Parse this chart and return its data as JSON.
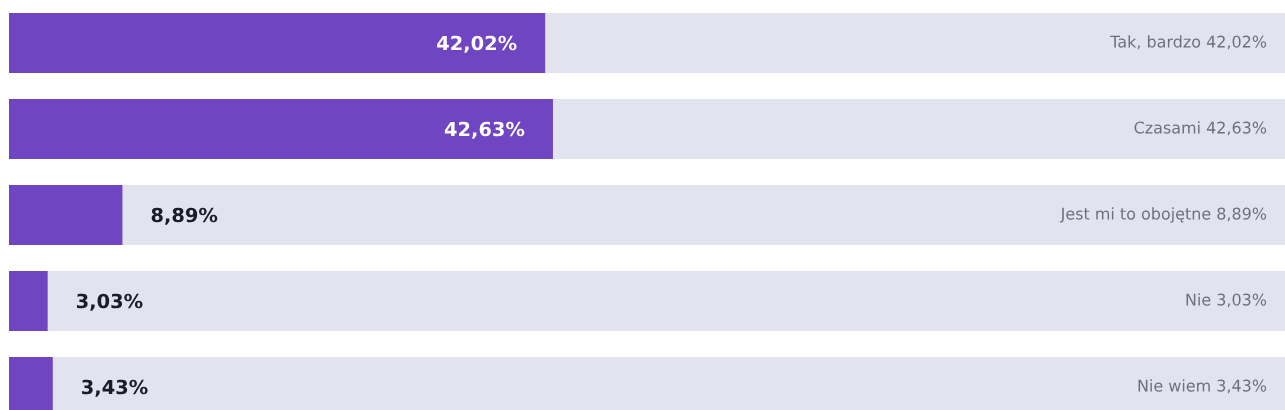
{
  "chart_data": {
    "type": "bar",
    "orientation": "horizontal",
    "categories": [
      "Tak, bardzo",
      "Czasami",
      "Jest mi to obojętne",
      "Nie",
      "Nie wiem"
    ],
    "values": [
      42.02,
      42.63,
      8.89,
      3.03,
      3.43
    ],
    "value_labels": [
      "42,02%",
      "42,63%",
      "8,89%",
      "3,03%",
      "3,43%"
    ],
    "color": "#6f45c2",
    "xlim": [
      0,
      100
    ]
  }
}
